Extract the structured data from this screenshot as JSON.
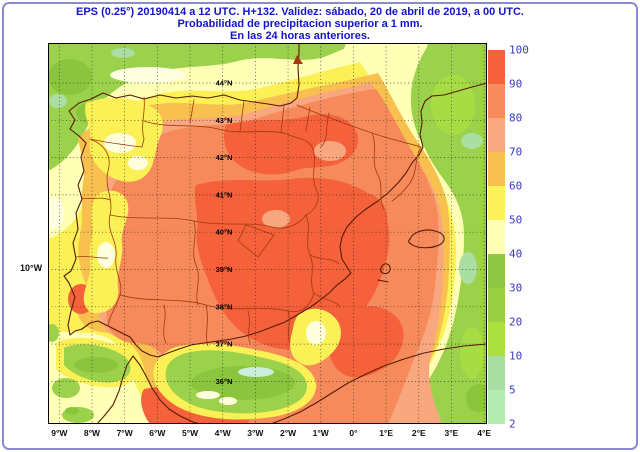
{
  "title": {
    "line1": "EPS (0.25°) 20190414 a 12 UTC.  H+132. Validez: sábado, 20 de abril de 2019,  a  00 UTC.",
    "line2": "Probabilidad de precipitacion superior a 1 mm.",
    "line3": "En las 24 horas anteriores."
  },
  "map": {
    "left_edge_label": "10°W",
    "lon_labels": [
      "9°W",
      "8°W",
      "7°W",
      "6°W",
      "5°W",
      "4°W",
      "3°W",
      "2°W",
      "1°W",
      "0°",
      "1°E",
      "2°E",
      "3°E",
      "4°E"
    ],
    "lat_labels": [
      "44°N",
      "43°N",
      "42°N",
      "41°N",
      "40°N",
      "39°N",
      "38°N",
      "37°N",
      "36°N"
    ]
  },
  "colorbar": {
    "tick_labels": [
      "100",
      "90",
      "80",
      "70",
      "60",
      "50",
      "40",
      "30",
      "20",
      "10",
      "5",
      "2"
    ],
    "segments": [
      {
        "range": "90-100",
        "color": "#F4613B"
      },
      {
        "range": "80-90",
        "color": "#F78B5D"
      },
      {
        "range": "70-80",
        "color": "#FAA87F"
      },
      {
        "range": "60-70",
        "color": "#F8C04E"
      },
      {
        "range": "50-60",
        "color": "#FCF259"
      },
      {
        "range": "40-50",
        "color": "#FFFFB4"
      },
      {
        "range": "30-40",
        "color": "#8FC845"
      },
      {
        "range": "20-30",
        "color": "#99CF43"
      },
      {
        "range": "10-20",
        "color": "#A9E03E"
      },
      {
        "range": "5-10",
        "color": "#A9DEA3"
      },
      {
        "range": "2-5",
        "color": "#B4EBB0"
      }
    ]
  },
  "chart_data": {
    "type": "heatmap",
    "title": "Probabilidad de precipitacion superior a 1 mm (EPS 0.25°, H+132)",
    "legend_values": [
      100,
      90,
      80,
      70,
      60,
      50,
      40,
      30,
      20,
      10,
      5,
      2
    ],
    "legend_unit": "%",
    "x_ticks": [
      "9°W",
      "8°W",
      "7°W",
      "6°W",
      "5°W",
      "4°W",
      "3°W",
      "2°W",
      "1°W",
      "0°",
      "1°E",
      "2°E",
      "3°E",
      "4°E"
    ],
    "y_ticks": [
      "44°N",
      "43°N",
      "42°N",
      "41°N",
      "40°N",
      "39°N",
      "38°N",
      "37°N",
      "36°N"
    ],
    "region": "Iberian Peninsula and western Mediterranean",
    "summary": "Probabilities 80-100% over central/eastern Iberia and Alboran-Algerian waters; 40-70% along Portugal, Galicia and Cantabrian coasts; below 30% in Bay of Biscay, Gulf of Lion, Gulf of Cadiz and Alboran Sea green patches and far eastern sea."
  },
  "palette": {
    "sea_green": "#9CD24B",
    "green_mid": "#8BC53E",
    "green_bright": "#A8DC44",
    "sage": "#ABDEA3",
    "mint": "#CBEDDC",
    "pale_yellow": "#FFFFB6",
    "cream": "#FFFFDF",
    "yellow": "#FBF156",
    "amber": "#F8C04E",
    "salmon": "#F9A77E",
    "orange": "#F78A5B",
    "red_orange": "#F4613B",
    "coast": "#571B04",
    "admin": "#A23A0C",
    "grid": "#1C1C1C",
    "title": "#1414CC",
    "tick": "#3A3ABF",
    "axis": "#111111",
    "frame": "#8A8ACC"
  }
}
